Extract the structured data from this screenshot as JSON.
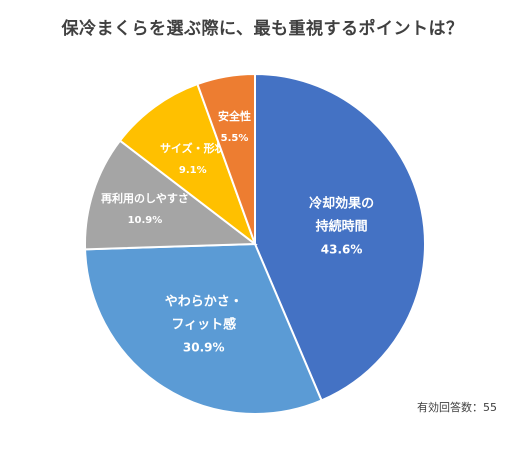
{
  "chart_data": {
    "type": "pie",
    "title": "保冷まくらを選ぶ際に、最も重視するポイントは？",
    "slices": [
      {
        "label": "冷却効果の持続時間",
        "value": 43.6,
        "value_label": "43.6%",
        "color": "#4472c4",
        "label_lines": [
          "冷却効果の",
          "持続時間"
        ]
      },
      {
        "label": "やわらかさ・フィット感",
        "value": 30.9,
        "value_label": "30.9%",
        "color": "#5b9bd5",
        "label_lines": [
          "やわらかさ・",
          "フィット感"
        ]
      },
      {
        "label": "再利用のしやすさ",
        "value": 10.9,
        "value_label": "10.9%",
        "color": "#a5a5a5",
        "label_lines": [
          "再利用のしやすさ"
        ]
      },
      {
        "label": "サイズ・形状",
        "value": 9.1,
        "value_label": "9.1%",
        "color": "#ffc000",
        "label_lines": [
          "サイズ・形状"
        ]
      },
      {
        "label": "安全性",
        "value": 5.5,
        "value_label": "5.5%",
        "color": "#ed7d31",
        "label_lines": [
          "安全性"
        ]
      }
    ],
    "start": "12 o'clock",
    "direction": "clockwise",
    "legend": "none"
  },
  "footnote": "有効回答数：55"
}
